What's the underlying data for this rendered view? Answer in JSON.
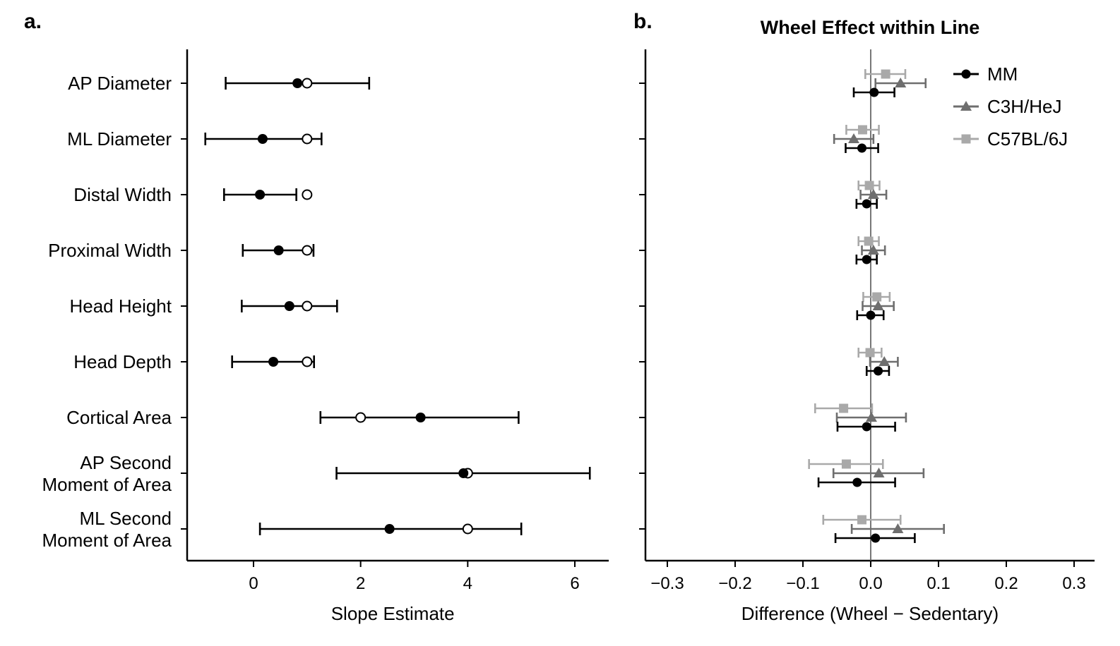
{
  "panels": {
    "a": {
      "letter": "a."
    },
    "b": {
      "letter": "b.",
      "title": "Wheel Effect within Line"
    }
  },
  "chart_data": [
    {
      "type": "scatter",
      "panel": "a",
      "title": "",
      "xlabel": "Slope Estimate",
      "ylabel": "",
      "xlim": [
        -1.3,
        6.6
      ],
      "xticks": [
        0,
        2,
        4,
        6
      ],
      "xtick_labels": [
        "0",
        "2",
        "4",
        "6"
      ],
      "categories": [
        [
          "AP Diameter"
        ],
        [
          "ML Diameter"
        ],
        [
          "Distal Width"
        ],
        [
          "Proximal Width"
        ],
        [
          "Head Height"
        ],
        [
          "Head Depth"
        ],
        [
          "Cortical Area"
        ],
        [
          "AP Second",
          "Moment of Area"
        ],
        [
          "ML Second",
          "Moment of Area"
        ]
      ],
      "estimates": [
        {
          "est": 0.82,
          "lo": -0.52,
          "hi": 2.16,
          "expected": 1
        },
        {
          "est": 0.17,
          "lo": -0.9,
          "hi": 1.27,
          "expected": 1
        },
        {
          "est": 0.12,
          "lo": -0.55,
          "hi": 0.8,
          "expected": 1
        },
        {
          "est": 0.47,
          "lo": -0.2,
          "hi": 1.12,
          "expected": 1
        },
        {
          "est": 0.67,
          "lo": -0.22,
          "hi": 1.56,
          "expected": 1
        },
        {
          "est": 0.37,
          "lo": -0.4,
          "hi": 1.13,
          "expected": 1
        },
        {
          "est": 3.12,
          "lo": 1.25,
          "hi": 4.95,
          "expected": 2
        },
        {
          "est": 3.92,
          "lo": 1.55,
          "hi": 6.28,
          "expected": 4
        },
        {
          "est": 2.54,
          "lo": 0.12,
          "hi": 5.0,
          "expected": 4
        }
      ],
      "grid": false,
      "colors": {
        "points": "#000000",
        "error_bars": "#000000",
        "axis": "#000000"
      }
    },
    {
      "type": "scatter",
      "panel": "b",
      "title": "Wheel Effect within Line",
      "xlabel": "Difference (Wheel − Sedentary)",
      "ylabel": "",
      "xlim": [
        -0.335,
        0.335
      ],
      "xticks": [
        -0.3,
        -0.2,
        -0.1,
        0.0,
        0.1,
        0.2,
        0.3
      ],
      "xtick_labels": [
        "−0.3",
        "−0.2",
        "−0.1",
        "0.0",
        "0.1",
        "0.2",
        "0.3"
      ],
      "reference_line": 0.0,
      "legend_position": "top-right",
      "grid": false,
      "series": [
        {
          "name": "MM",
          "marker": "circle",
          "color": "#000000",
          "values": [
            {
              "est": 0.005,
              "lo": -0.025,
              "hi": 0.035
            },
            {
              "est": -0.013,
              "lo": -0.037,
              "hi": 0.011
            },
            {
              "est": -0.006,
              "lo": -0.021,
              "hi": 0.009
            },
            {
              "est": -0.006,
              "lo": -0.021,
              "hi": 0.009
            },
            {
              "est": 0.0,
              "lo": -0.02,
              "hi": 0.019
            },
            {
              "est": 0.011,
              "lo": -0.006,
              "hi": 0.027
            },
            {
              "est": -0.006,
              "lo": -0.049,
              "hi": 0.036
            },
            {
              "est": -0.02,
              "lo": -0.077,
              "hi": 0.036
            },
            {
              "est": 0.007,
              "lo": -0.052,
              "hi": 0.065
            }
          ]
        },
        {
          "name": "C3H/HeJ",
          "marker": "triangle",
          "color": "#6e6e6e",
          "values": [
            {
              "est": 0.044,
              "lo": 0.007,
              "hi": 0.081
            },
            {
              "est": -0.025,
              "lo": -0.054,
              "hi": 0.004
            },
            {
              "est": 0.004,
              "lo": -0.015,
              "hi": 0.023
            },
            {
              "est": 0.004,
              "lo": -0.013,
              "hi": 0.021
            },
            {
              "est": 0.011,
              "lo": -0.012,
              "hi": 0.034
            },
            {
              "est": 0.02,
              "lo": -0.001,
              "hi": 0.04
            },
            {
              "est": 0.001,
              "lo": -0.05,
              "hi": 0.052
            },
            {
              "est": 0.012,
              "lo": -0.055,
              "hi": 0.078
            },
            {
              "est": 0.04,
              "lo": -0.028,
              "hi": 0.108
            }
          ]
        },
        {
          "name": "C57BL/6J",
          "marker": "square",
          "color": "#a9a9a9",
          "values": [
            {
              "est": 0.022,
              "lo": -0.008,
              "hi": 0.051
            },
            {
              "est": -0.012,
              "lo": -0.036,
              "hi": 0.012
            },
            {
              "est": -0.002,
              "lo": -0.018,
              "hi": 0.013
            },
            {
              "est": -0.003,
              "lo": -0.018,
              "hi": 0.012
            },
            {
              "est": 0.009,
              "lo": -0.011,
              "hi": 0.028
            },
            {
              "est": -0.001,
              "lo": -0.018,
              "hi": 0.016
            },
            {
              "est": -0.04,
              "lo": -0.082,
              "hi": 0.002
            },
            {
              "est": -0.036,
              "lo": -0.091,
              "hi": 0.018
            },
            {
              "est": -0.013,
              "lo": -0.07,
              "hi": 0.044
            }
          ]
        }
      ]
    }
  ]
}
